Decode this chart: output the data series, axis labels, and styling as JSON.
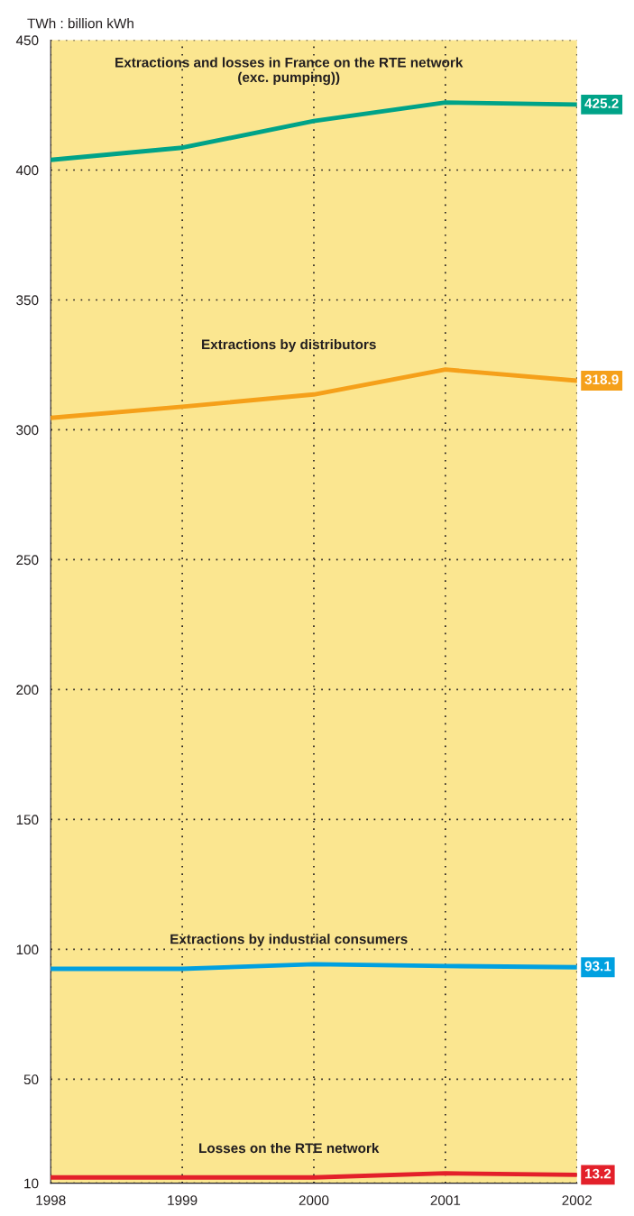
{
  "chart_data": {
    "type": "line",
    "ylabel": "TWh : billion kWh",
    "x": [
      1998,
      1999,
      2000,
      2001,
      2002
    ],
    "xlim": [
      1998,
      2002
    ],
    "xticks": [
      1998,
      1999,
      2000,
      2001,
      2002
    ],
    "ylim": [
      10,
      450
    ],
    "yticks": [
      10,
      50,
      100,
      150,
      200,
      250,
      300,
      350,
      400,
      450
    ],
    "grid": true,
    "line_style": "solid",
    "marker": "none",
    "series": [
      {
        "name": "Extractions and losses in France on the RTE network\n(exc. pumping))",
        "color": "#00a388",
        "values": [
          403.9,
          408.6,
          418.9,
          426.0,
          425.2
        ],
        "value_labels": [
          null,
          null,
          null,
          null,
          "425.2"
        ]
      },
      {
        "name": "Extractions by distributors",
        "color": "#f5a01a",
        "values": [
          304.6,
          308.9,
          313.6,
          323.2,
          318.9
        ],
        "value_labels": [
          null,
          null,
          null,
          null,
          "318.9"
        ]
      },
      {
        "name": "Extractions by industrial consumers",
        "color": "#00a0e0",
        "values": [
          92.5,
          92.5,
          94.3,
          93.6,
          93.1
        ],
        "value_labels": [
          null,
          null,
          null,
          null,
          "93.1"
        ]
      },
      {
        "name": "Losses on the RTE network",
        "color": "#e3202a",
        "values": [
          12.2,
          12.2,
          12.2,
          13.8,
          13.2
        ],
        "value_labels": [
          null,
          null,
          null,
          null,
          "13.2"
        ]
      }
    ]
  }
}
